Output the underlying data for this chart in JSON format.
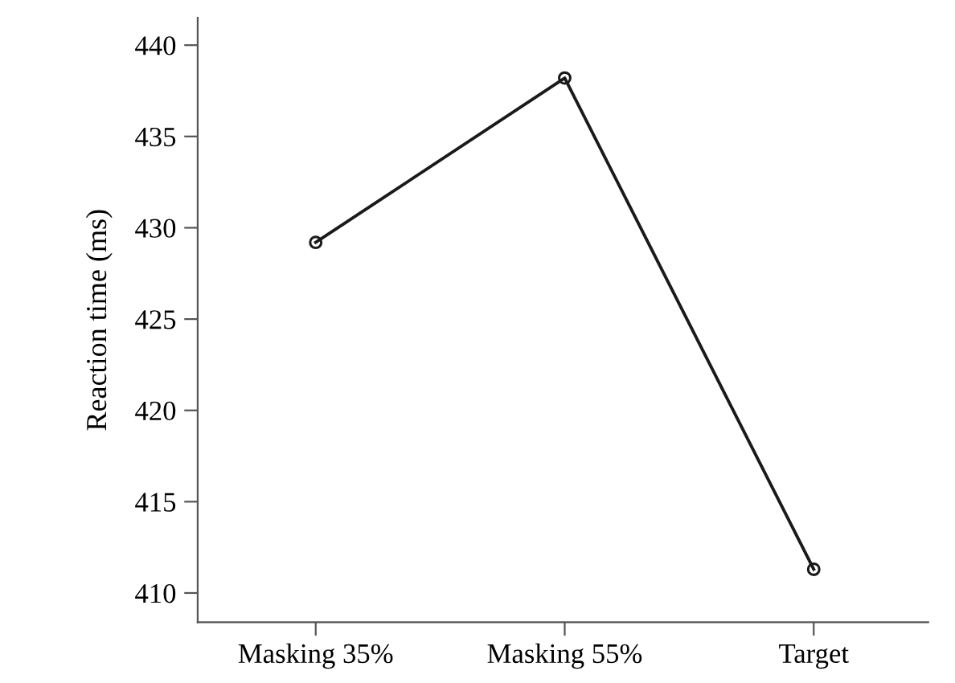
{
  "chart_data": {
    "type": "line",
    "ylabel": "Reaction time (ms)",
    "categories": [
      "Masking 35%",
      "Masking 55%",
      "Target"
    ],
    "series": [
      {
        "color": "#1a1a1a",
        "values": [
          429.2,
          438.2,
          411.3
        ]
      }
    ],
    "ylim": [
      408.4,
      441.5
    ],
    "yticks": [
      410,
      415,
      420,
      425,
      430,
      435,
      440
    ],
    "marker": "circle",
    "line_style": "solid",
    "grid": false,
    "legend": false
  }
}
